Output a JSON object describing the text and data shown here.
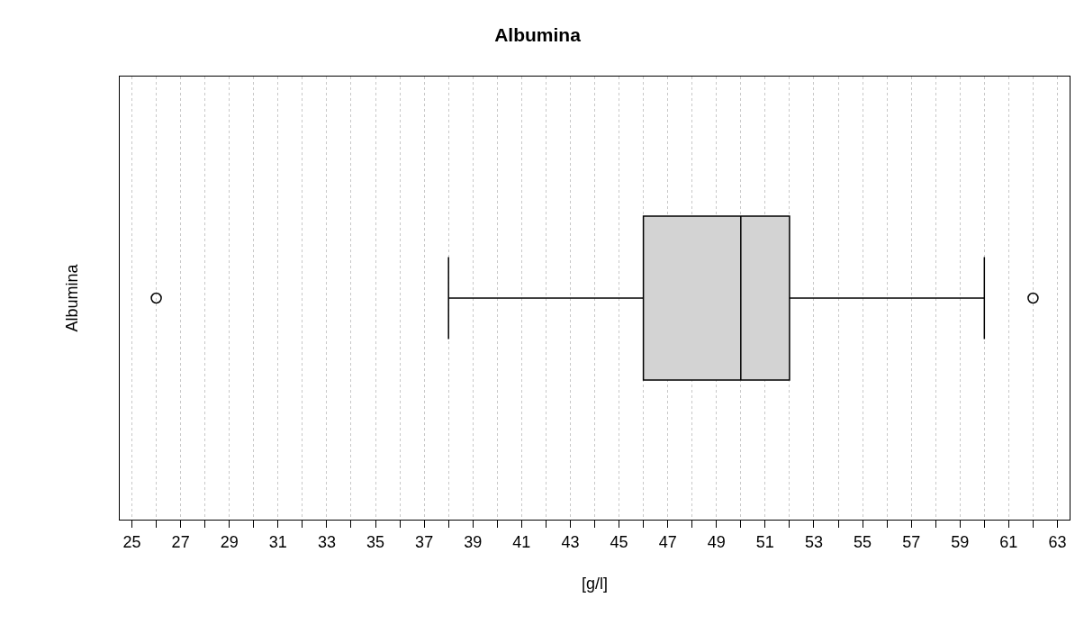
{
  "chart_data": {
    "type": "box",
    "title": "Albumina",
    "xlabel": "[g/l]",
    "ylabel": "Albumina",
    "orientation": "horizontal",
    "categories": [
      null
    ],
    "color": "#d3d3d3",
    "boxes": [
      {
        "low": 38,
        "q1": 46,
        "median": 50,
        "q3": 52,
        "high": 60,
        "outliers": [
          26,
          62
        ]
      }
    ],
    "xlim": [
      24.5,
      63.5
    ],
    "xticks": [
      25,
      {
        "value": 26,
        "label": null
      },
      27,
      {
        "value": 28,
        "label": null
      },
      29,
      {
        "value": 30,
        "label": null
      },
      31,
      {
        "value": 32,
        "label": null
      },
      33,
      {
        "value": 34,
        "label": null
      },
      35,
      {
        "value": 36,
        "label": null
      },
      37,
      {
        "value": 38,
        "label": null
      },
      39,
      {
        "value": 40,
        "label": null
      },
      41,
      {
        "value": 42,
        "label": null
      },
      43,
      {
        "value": 44,
        "label": null
      },
      45,
      {
        "value": 46,
        "label": null
      },
      47,
      {
        "value": 48,
        "label": null
      },
      49,
      {
        "value": 50,
        "label": null
      },
      51,
      {
        "value": 52,
        "label": null
      },
      53,
      {
        "value": 54,
        "label": null
      },
      55,
      {
        "value": 56,
        "label": null
      },
      57,
      {
        "value": 58,
        "label": null
      },
      59,
      {
        "value": 60,
        "label": null
      },
      61,
      {
        "value": 62,
        "label": null
      },
      63
    ],
    "grid": "x",
    "tick_labels": "x"
  }
}
